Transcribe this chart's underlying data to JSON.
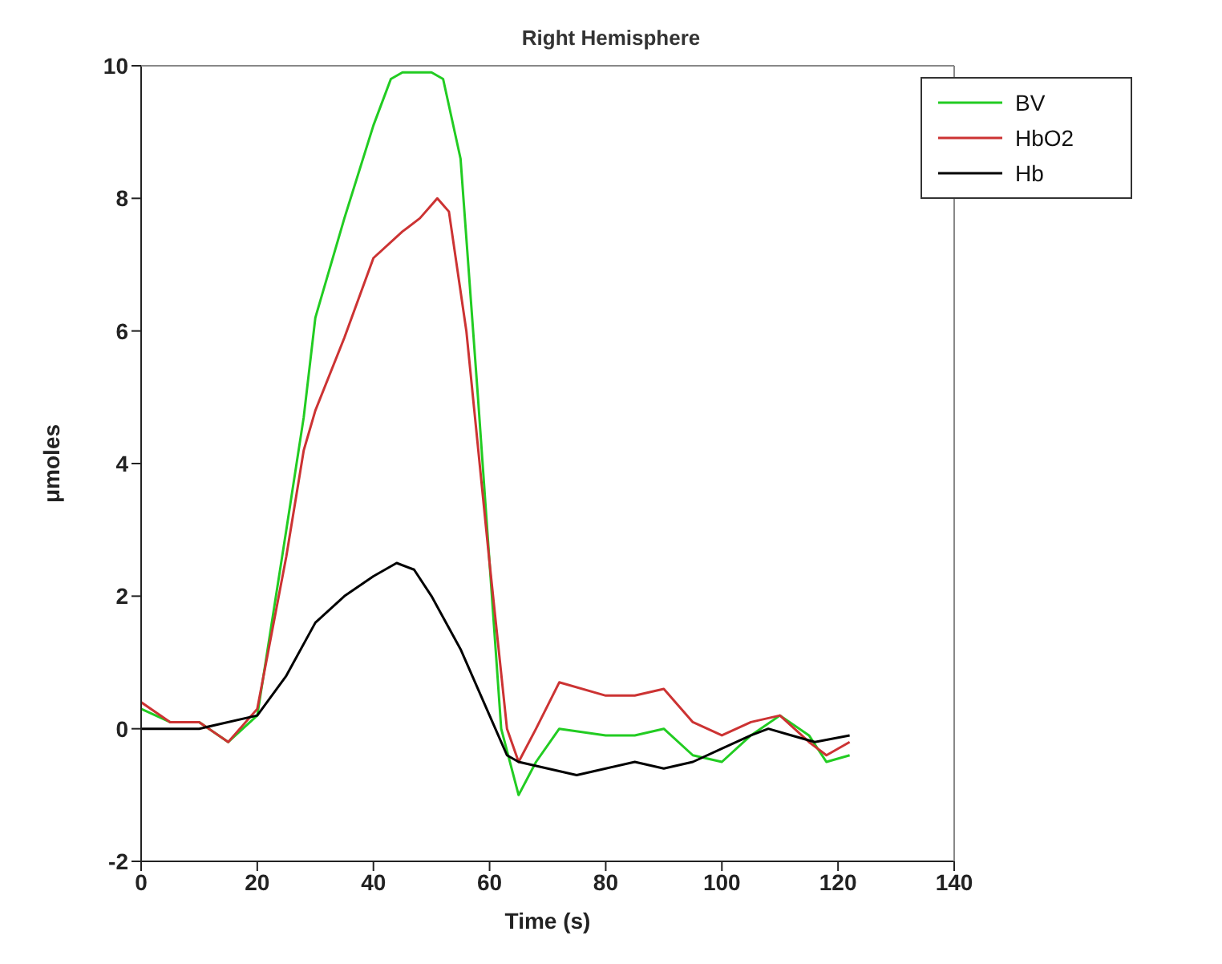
{
  "chart_data": {
    "type": "line",
    "title": "Right Hemisphere",
    "xlabel": "Time (s)",
    "ylabel": "μmoles",
    "xlim": [
      0,
      140
    ],
    "xticks": [
      0,
      20,
      40,
      60,
      80,
      100,
      120,
      140
    ],
    "ylim": [
      -2,
      10
    ],
    "yticks": [
      -2,
      0,
      2,
      4,
      6,
      8,
      10
    ],
    "legend": "top right",
    "grid": false,
    "marker": "none",
    "series": [
      {
        "name": "BV",
        "color": "#22cc22",
        "x": [
          0,
          5,
          10,
          15,
          20,
          25,
          28,
          30,
          35,
          40,
          43,
          45,
          50,
          52,
          55,
          58,
          60,
          62,
          65,
          68,
          72,
          80,
          85,
          90,
          95,
          100,
          105,
          110,
          115,
          118,
          122
        ],
        "values": [
          0.3,
          0.1,
          0.1,
          -0.2,
          0.2,
          3,
          4.7,
          6.2,
          7.7,
          9.1,
          9.8,
          9.9,
          9.9,
          9.8,
          8.6,
          5,
          2.5,
          0,
          -1,
          -0.5,
          0,
          -0.1,
          -0.1,
          0,
          -0.4,
          -0.5,
          -0.1,
          0.2,
          -0.1,
          -0.5,
          -0.4
        ]
      },
      {
        "name": "HbO2",
        "color": "#cc3333",
        "x": [
          0,
          5,
          10,
          15,
          20,
          25,
          28,
          30,
          35,
          40,
          45,
          48,
          51,
          53,
          56,
          60,
          63,
          65,
          68,
          72,
          80,
          85,
          90,
          95,
          100,
          105,
          110,
          115,
          118,
          122
        ],
        "values": [
          0.4,
          0.1,
          0.1,
          -0.2,
          0.3,
          2.6,
          4.2,
          4.8,
          5.9,
          7.1,
          7.5,
          7.7,
          8,
          7.8,
          6,
          2.5,
          0,
          -0.5,
          0,
          0.7,
          0.5,
          0.5,
          0.6,
          0.1,
          -0.1,
          0.1,
          0.2,
          -0.2,
          -0.4,
          -0.2
        ]
      },
      {
        "name": "Hb",
        "color": "#000000",
        "x": [
          0,
          10,
          20,
          25,
          30,
          35,
          40,
          44,
          47,
          50,
          55,
          60,
          63,
          65,
          70,
          75,
          80,
          85,
          90,
          95,
          100,
          105,
          108,
          112,
          116,
          122
        ],
        "values": [
          0,
          0,
          0.2,
          0.8,
          1.6,
          2,
          2.3,
          2.5,
          2.4,
          2,
          1.2,
          0.2,
          -0.4,
          -0.5,
          -0.6,
          -0.7,
          -0.6,
          -0.5,
          -0.6,
          -0.5,
          -0.3,
          -0.1,
          0,
          -0.1,
          -0.2,
          -0.1
        ]
      }
    ]
  }
}
